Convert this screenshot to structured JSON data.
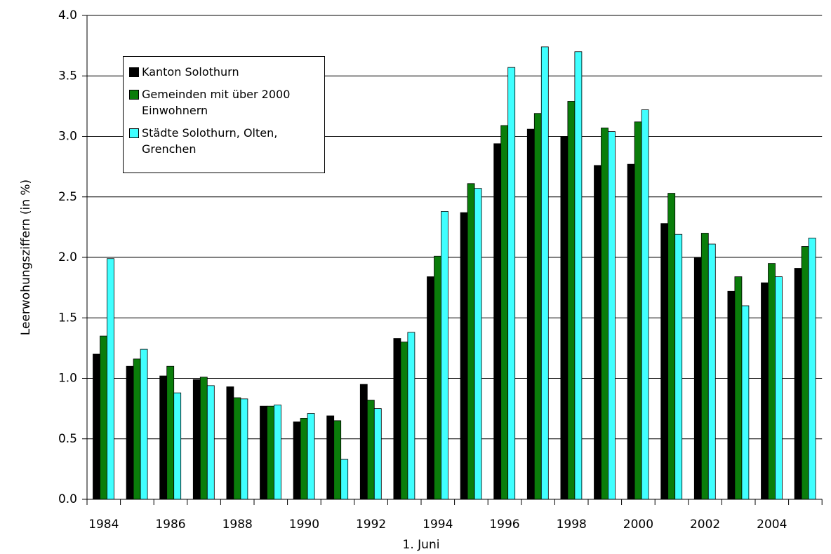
{
  "chart_data": {
    "type": "bar",
    "categories": [
      "1984",
      null,
      "1986",
      null,
      "1988",
      null,
      "1990",
      null,
      "1992",
      null,
      "1994",
      null,
      "1996",
      null,
      "1998",
      null,
      "2000",
      null,
      "2002",
      null,
      "2004",
      null
    ],
    "series": [
      {
        "name": "Kanton Solothurn",
        "color": "#000000",
        "values": [
          1.2,
          1.1,
          1.02,
          0.99,
          0.93,
          0.77,
          0.64,
          0.69,
          0.95,
          1.33,
          1.84,
          2.37,
          2.94,
          3.06,
          3.0,
          2.76,
          2.77,
          2.28,
          2.0,
          1.72,
          1.79,
          1.91
        ]
      },
      {
        "name": "Gemeinden mit über 2000 Einwohnern",
        "color": "#0a7d0a",
        "values": [
          1.35,
          1.16,
          1.1,
          1.01,
          0.84,
          0.77,
          0.67,
          0.65,
          0.82,
          1.3,
          2.01,
          2.61,
          3.09,
          3.19,
          3.29,
          3.07,
          3.12,
          2.53,
          2.2,
          1.84,
          1.95,
          2.09
        ]
      },
      {
        "name": "Städte Solothurn, Olten, Grenchen",
        "color": "#40ffff",
        "values": [
          1.99,
          1.24,
          0.88,
          0.94,
          0.83,
          0.78,
          0.71,
          0.33,
          0.75,
          1.38,
          2.38,
          2.57,
          3.57,
          3.74,
          3.7,
          3.04,
          3.22,
          2.19,
          2.11,
          1.6,
          1.84,
          2.16
        ]
      }
    ],
    "ylim": [
      0,
      4
    ],
    "yticks": [
      {
        "value": 0,
        "label": "0.0"
      },
      0.5,
      {
        "value": 1,
        "label": "1.0"
      },
      1.5,
      {
        "value": 2,
        "label": "2.0"
      },
      2.5,
      {
        "value": 3,
        "label": "3.0"
      },
      3.5,
      {
        "value": 4,
        "label": "4.0"
      }
    ],
    "xlabel": "1. Juni",
    "ylabel": "Leerwohungsziffern (in %)",
    "grid": true,
    "legend": "upper-left"
  }
}
